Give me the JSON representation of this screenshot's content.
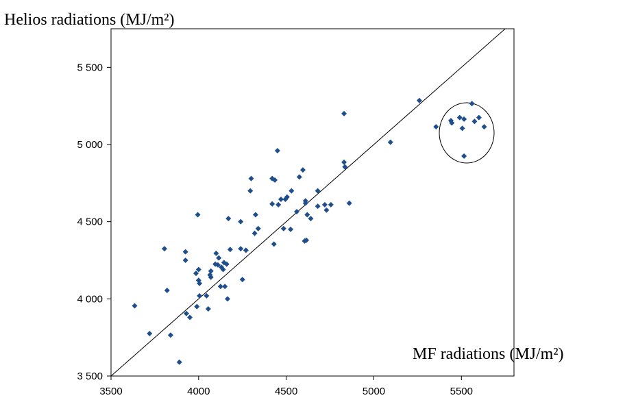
{
  "chart_data": {
    "type": "scatter",
    "ylabel": "Helios radiations (MJ/m²)",
    "xlabel": "MF radiations (MJ/m²)",
    "xlim": [
      3500,
      5800
    ],
    "ylim": [
      3500,
      5750
    ],
    "xticks": [
      3500,
      4000,
      4500,
      5000,
      5500
    ],
    "xtick_labels": [
      "3500",
      "4000",
      "4500",
      "5000",
      "5500"
    ],
    "yticks": [
      3500,
      4000,
      4500,
      5000,
      5500
    ],
    "ytick_labels": [
      "3 500",
      "4 000",
      "4 500",
      "5 000",
      "5 500"
    ],
    "grid": false,
    "reference_line": "y = x",
    "marker_color": "#1f4e8c",
    "annotation": "ellipse around the cluster of points near x = 5550, y = 5100",
    "points": [
      [
        3635,
        3955
      ],
      [
        3720,
        3775
      ],
      [
        3805,
        4325
      ],
      [
        3820,
        4055
      ],
      [
        3840,
        3765
      ],
      [
        3890,
        3590
      ],
      [
        3925,
        4305
      ],
      [
        3925,
        4250
      ],
      [
        3930,
        3905
      ],
      [
        3950,
        3880
      ],
      [
        3985,
        4165
      ],
      [
        3990,
        3950
      ],
      [
        3995,
        4545
      ],
      [
        4000,
        4190
      ],
      [
        4000,
        4120
      ],
      [
        4005,
        4020
      ],
      [
        4005,
        4100
      ],
      [
        4045,
        4020
      ],
      [
        4055,
        3935
      ],
      [
        4065,
        4155
      ],
      [
        4070,
        4140
      ],
      [
        4070,
        4180
      ],
      [
        4095,
        4225
      ],
      [
        4100,
        4295
      ],
      [
        4110,
        4220
      ],
      [
        4115,
        4265
      ],
      [
        4125,
        4080
      ],
      [
        4130,
        4205
      ],
      [
        4140,
        4190
      ],
      [
        4145,
        4235
      ],
      [
        4150,
        4080
      ],
      [
        4160,
        4225
      ],
      [
        4165,
        4000
      ],
      [
        4170,
        4520
      ],
      [
        4180,
        4320
      ],
      [
        4240,
        4325
      ],
      [
        4240,
        4500
      ],
      [
        4250,
        4125
      ],
      [
        4270,
        4315
      ],
      [
        4295,
        4700
      ],
      [
        4300,
        4780
      ],
      [
        4320,
        4425
      ],
      [
        4325,
        4545
      ],
      [
        4340,
        4455
      ],
      [
        4420,
        4780
      ],
      [
        4420,
        4615
      ],
      [
        4430,
        4355
      ],
      [
        4435,
        4770
      ],
      [
        4450,
        4960
      ],
      [
        4455,
        4610
      ],
      [
        4470,
        4645
      ],
      [
        4485,
        4455
      ],
      [
        4495,
        4645
      ],
      [
        4505,
        4660
      ],
      [
        4525,
        4450
      ],
      [
        4530,
        4700
      ],
      [
        4560,
        4565
      ],
      [
        4575,
        4790
      ],
      [
        4595,
        4835
      ],
      [
        4605,
        4375
      ],
      [
        4610,
        4620
      ],
      [
        4610,
        4635
      ],
      [
        4615,
        4380
      ],
      [
        4620,
        4545
      ],
      [
        4640,
        4520
      ],
      [
        4680,
        4600
      ],
      [
        4680,
        4700
      ],
      [
        4720,
        4610
      ],
      [
        4730,
        4575
      ],
      [
        4755,
        4610
      ],
      [
        4830,
        5200
      ],
      [
        4830,
        4885
      ],
      [
        4835,
        4855
      ],
      [
        4860,
        4620
      ],
      [
        5095,
        5015
      ],
      [
        5260,
        5285
      ],
      [
        5355,
        5115
      ],
      [
        5440,
        5155
      ],
      [
        5445,
        5140
      ],
      [
        5490,
        5175
      ],
      [
        5505,
        5105
      ],
      [
        5515,
        5165
      ],
      [
        5515,
        4925
      ],
      [
        5560,
        5265
      ],
      [
        5575,
        5150
      ],
      [
        5600,
        5175
      ],
      [
        5630,
        5115
      ]
    ]
  }
}
